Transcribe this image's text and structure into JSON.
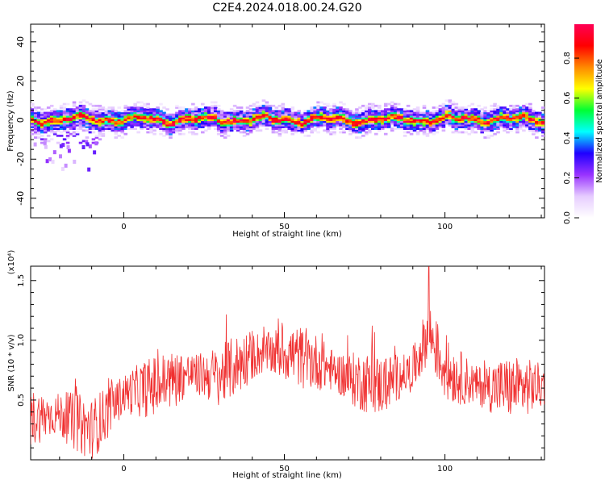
{
  "title": "C2E4.2024.018.00.24.G20",
  "chart_data": [
    {
      "type": "heatmap",
      "title": "C2E4.2024.018.00.24.G20",
      "xlabel": "Height of straight line (km)",
      "ylabel": "Frequency (Hz)",
      "xlim": [
        -29,
        131
      ],
      "ylim": [
        -50,
        49
      ],
      "x_ticks": [
        0,
        50,
        100
      ],
      "y_ticks": [
        -40,
        -20,
        0,
        20,
        40
      ],
      "colorbar": {
        "label": "Normalized spectral amplitude",
        "range": [
          0.0,
          0.97
        ],
        "ticks": [
          "0.0",
          "0.2",
          "0.4",
          "0.6",
          "0.8"
        ],
        "colors": [
          "#ffffff",
          "#e6ccff",
          "#9933ff",
          "#1f00ff",
          "#00ffff",
          "#00ff33",
          "#ffff00",
          "#ff8800",
          "#ff0000",
          "#ff0055"
        ]
      },
      "signal_band": {
        "center_frequency_hz": 0,
        "core_halfwidth_hz": 2,
        "envelope_halfwidth_hz": 5,
        "low_height_scatter_range_km": [
          -29,
          -8
        ],
        "low_height_scatter_min_hz": -25
      }
    },
    {
      "type": "line",
      "xlabel": "Height of straight line (km)",
      "ylabel": "SNR (10 * v/v)",
      "y_multiplier": "(x10⁴)",
      "xlim": [
        -29,
        131
      ],
      "ylim": [
        0,
        1.62
      ],
      "x_ticks": [
        0,
        50,
        100
      ],
      "y_ticks": [
        "0.5",
        "1.0",
        "1.5"
      ],
      "color": "#f03030",
      "series": [
        {
          "x": [
            -29,
            -20,
            -10,
            0,
            10,
            20,
            30,
            40,
            50,
            60,
            70,
            80,
            90,
            95,
            100,
            110,
            120,
            131
          ],
          "values": [
            0.35,
            0.38,
            0.25,
            0.55,
            0.62,
            0.72,
            0.7,
            0.88,
            0.9,
            0.82,
            0.68,
            0.62,
            0.75,
            1.08,
            0.75,
            0.62,
            0.6,
            0.62
          ]
        }
      ]
    }
  ]
}
